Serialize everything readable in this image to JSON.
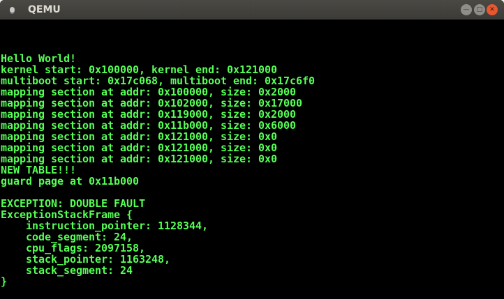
{
  "window": {
    "title": "QEMU",
    "controls": {
      "minimize_icon": "minimize-icon",
      "maximize_icon": "maximize-icon",
      "close_icon": "close-icon"
    }
  },
  "terminal": {
    "text_color": "#55ff55",
    "background": "#000000",
    "lines": [
      "",
      "",
      "",
      "Hello World!",
      "kernel start: 0x100000, kernel end: 0x121000",
      "multiboot start: 0x17c068, multiboot end: 0x17c6f0",
      "mapping section at addr: 0x100000, size: 0x2000",
      "mapping section at addr: 0x102000, size: 0x17000",
      "mapping section at addr: 0x119000, size: 0x2000",
      "mapping section at addr: 0x11b000, size: 0x6000",
      "mapping section at addr: 0x121000, size: 0x0",
      "mapping section at addr: 0x121000, size: 0x0",
      "mapping section at addr: 0x121000, size: 0x0",
      "NEW TABLE!!!",
      "guard page at 0x11b000",
      "",
      "EXCEPTION: DOUBLE FAULT",
      "ExceptionStackFrame {",
      "    instruction_pointer: 1128344,",
      "    code_segment: 24,",
      "    cpu_flags: 2097158,",
      "    stack_pointer: 1163248,",
      "    stack_segment: 24",
      "}"
    ]
  }
}
